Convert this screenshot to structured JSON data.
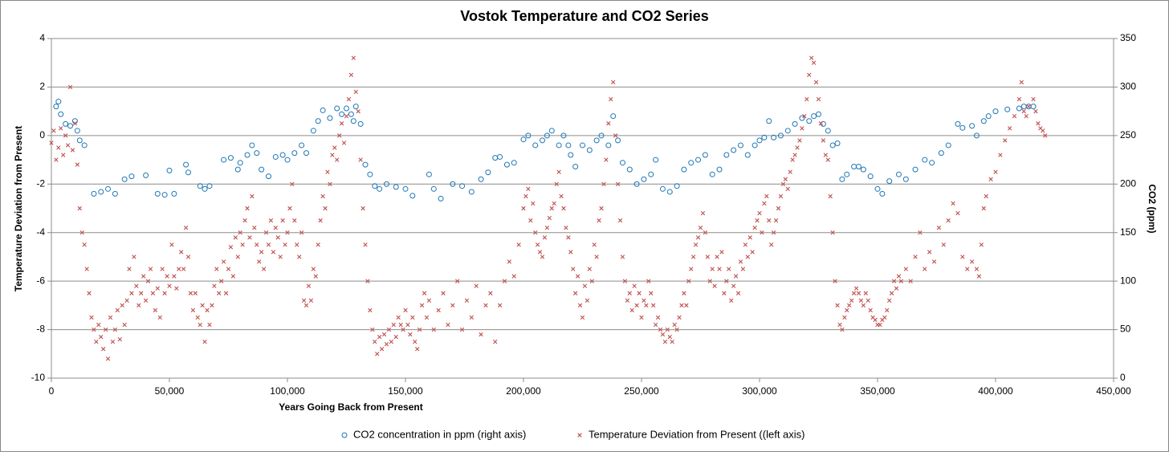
{
  "chart_data": {
    "type": "scatter",
    "title": "Vostok Temperature and CO2 Series",
    "x_label": "Years Going Back from Present",
    "y_label": "Temperature Deviation from Present",
    "y2_label": "CO2 (ppm)",
    "xlim": [
      0,
      450000
    ],
    "xticks": [
      0,
      {
        "value": 50000,
        "label": "50,000"
      },
      {
        "value": 100000,
        "label": "100,000"
      },
      {
        "value": 150000,
        "label": "150,000"
      },
      {
        "value": 200000,
        "label": "200,000"
      },
      {
        "value": 250000,
        "label": "250,000"
      },
      {
        "value": 300000,
        "label": "300,000"
      },
      {
        "value": 350000,
        "label": "350,000"
      },
      {
        "value": 400000,
        "label": "400,000"
      },
      {
        "value": 450000,
        "label": "450,000"
      }
    ],
    "ylim": [
      -10,
      4
    ],
    "yticks": [
      -10,
      -8,
      -6,
      -4,
      -2,
      0,
      2,
      4
    ],
    "y2lim": [
      0,
      350
    ],
    "y2ticks": [
      0,
      50,
      100,
      150,
      200,
      250,
      300,
      350
    ],
    "grid": true,
    "legend": "bottom",
    "series": [
      {
        "name": "CO2 concentration in ppm (right axis)",
        "color": "#1f77b4",
        "marker": "circle",
        "axis": "y2",
        "x": [
          2000,
          3000,
          4000,
          6000,
          8000,
          10000,
          11000,
          12000,
          14000,
          18000,
          21000,
          24000,
          27000,
          31000,
          34000,
          40000,
          45000,
          48000,
          50000,
          52000,
          57000,
          58000,
          63000,
          65000,
          67000,
          73000,
          76000,
          79000,
          80000,
          83000,
          85000,
          87000,
          89000,
          92000,
          95000,
          98000,
          100000,
          103000,
          106000,
          108000,
          111000,
          113000,
          115000,
          118000,
          121000,
          123000,
          125000,
          127000,
          128000,
          129000,
          131000,
          133000,
          135000,
          137000,
          139000,
          142000,
          146000,
          150000,
          153000,
          160000,
          162000,
          165000,
          170000,
          174000,
          178000,
          182000,
          185000,
          188000,
          190000,
          193000,
          196000,
          200000,
          202000,
          205000,
          208000,
          210000,
          212000,
          215000,
          217000,
          219000,
          220000,
          222000,
          225000,
          228000,
          231000,
          233000,
          236000,
          238000,
          240000,
          242000,
          245000,
          248000,
          251000,
          254000,
          256000,
          259000,
          262000,
          265000,
          268000,
          271000,
          274000,
          277000,
          280000,
          283000,
          286000,
          289000,
          292000,
          295000,
          298000,
          300000,
          302000,
          304000,
          306000,
          309000,
          312000,
          315000,
          318000,
          321000,
          323000,
          325000,
          327000,
          329000,
          331000,
          333000,
          335000,
          337000,
          340000,
          342000,
          344000,
          347000,
          350000,
          352000,
          355000,
          359000,
          362000,
          366000,
          370000,
          373000,
          377000,
          380000,
          384000,
          386000,
          390000,
          392000,
          395000,
          397000,
          400000,
          405000,
          410000,
          412000,
          414000,
          416000
        ],
        "values": [
          280,
          285,
          272,
          262,
          260,
          265,
          255,
          245,
          240,
          190,
          192,
          195,
          190,
          205,
          208,
          209,
          190,
          189,
          214,
          190,
          220,
          212,
          198,
          195,
          198,
          225,
          227,
          215,
          222,
          230,
          240,
          232,
          215,
          208,
          228,
          230,
          225,
          232,
          240,
          232,
          255,
          265,
          276,
          268,
          278,
          272,
          278,
          272,
          265,
          280,
          262,
          220,
          210,
          198,
          195,
          200,
          197,
          195,
          188,
          210,
          195,
          185,
          200,
          198,
          192,
          205,
          212,
          227,
          228,
          220,
          222,
          246,
          250,
          240,
          245,
          250,
          255,
          240,
          250,
          240,
          230,
          218,
          240,
          235,
          245,
          250,
          240,
          270,
          245,
          222,
          215,
          200,
          205,
          210,
          225,
          195,
          192,
          198,
          215,
          222,
          225,
          230,
          210,
          215,
          230,
          235,
          240,
          230,
          240,
          245,
          248,
          265,
          248,
          250,
          255,
          262,
          268,
          265,
          270,
          272,
          262,
          255,
          240,
          242,
          205,
          210,
          218,
          218,
          215,
          208,
          195,
          190,
          203,
          210,
          205,
          215,
          225,
          222,
          232,
          240,
          262,
          258,
          260,
          250,
          265,
          270,
          275,
          277,
          278,
          280,
          280,
          280
        ]
      },
      {
        "name": "Temperature Deviation from Present ((left axis)",
        "color": "#c0504d",
        "marker": "x",
        "axis": "y",
        "x": [
          0,
          1000,
          2000,
          3000,
          4000,
          5000,
          6000,
          7000,
          8000,
          9000,
          10000,
          11000,
          12000,
          13000,
          14000,
          15000,
          16000,
          17000,
          18000,
          19000,
          20000,
          21000,
          22000,
          23000,
          24000,
          25000,
          26000,
          27000,
          28000,
          29000,
          30000,
          31000,
          32000,
          33000,
          34000,
          35000,
          36000,
          37000,
          38000,
          39000,
          40000,
          41000,
          42000,
          43000,
          44000,
          45000,
          46000,
          47000,
          48000,
          49000,
          50000,
          51000,
          52000,
          53000,
          54000,
          55000,
          56000,
          57000,
          58000,
          59000,
          60000,
          61000,
          62000,
          63000,
          64000,
          65000,
          66000,
          67000,
          68000,
          69000,
          70000,
          71000,
          72000,
          73000,
          74000,
          75000,
          76000,
          77000,
          78000,
          79000,
          80000,
          81000,
          82000,
          83000,
          84000,
          85000,
          86000,
          87000,
          88000,
          89000,
          90000,
          91000,
          92000,
          93000,
          94000,
          95000,
          96000,
          97000,
          98000,
          99000,
          100000,
          101000,
          102000,
          103000,
          104000,
          105000,
          106000,
          107000,
          108000,
          109000,
          110000,
          111000,
          112000,
          113000,
          114000,
          115000,
          116000,
          117000,
          118000,
          119000,
          120000,
          121000,
          122000,
          123000,
          124000,
          125000,
          126000,
          127000,
          128000,
          129000,
          130000,
          131000,
          132000,
          133000,
          134000,
          135000,
          136000,
          137000,
          138000,
          139000,
          140000,
          141000,
          142000,
          143000,
          144000,
          145000,
          146000,
          147000,
          148000,
          149000,
          150000,
          151000,
          152000,
          153000,
          154000,
          155000,
          156000,
          157000,
          158000,
          159000,
          160000,
          162000,
          164000,
          166000,
          168000,
          170000,
          172000,
          174000,
          176000,
          178000,
          180000,
          182000,
          184000,
          186000,
          188000,
          190000,
          192000,
          194000,
          196000,
          198000,
          200000,
          201000,
          202000,
          203000,
          204000,
          205000,
          206000,
          207000,
          208000,
          209000,
          210000,
          211000,
          212000,
          213000,
          214000,
          215000,
          216000,
          217000,
          218000,
          219000,
          220000,
          221000,
          222000,
          223000,
          224000,
          225000,
          226000,
          227000,
          228000,
          229000,
          230000,
          231000,
          232000,
          233000,
          234000,
          235000,
          236000,
          237000,
          238000,
          239000,
          240000,
          241000,
          242000,
          243000,
          244000,
          245000,
          246000,
          247000,
          248000,
          249000,
          250000,
          251000,
          252000,
          253000,
          254000,
          255000,
          256000,
          257000,
          258000,
          259000,
          260000,
          261000,
          262000,
          263000,
          264000,
          265000,
          266000,
          267000,
          268000,
          269000,
          270000,
          271000,
          272000,
          273000,
          274000,
          275000,
          276000,
          277000,
          278000,
          279000,
          280000,
          281000,
          282000,
          283000,
          284000,
          285000,
          286000,
          287000,
          288000,
          289000,
          290000,
          291000,
          292000,
          293000,
          294000,
          295000,
          296000,
          297000,
          298000,
          299000,
          300000,
          301000,
          302000,
          303000,
          304000,
          305000,
          306000,
          307000,
          308000,
          309000,
          310000,
          311000,
          312000,
          313000,
          314000,
          315000,
          316000,
          317000,
          318000,
          319000,
          320000,
          321000,
          322000,
          323000,
          324000,
          325000,
          326000,
          327000,
          328000,
          329000,
          330000,
          331000,
          332000,
          333000,
          334000,
          335000,
          336000,
          337000,
          338000,
          339000,
          340000,
          341000,
          342000,
          343000,
          344000,
          345000,
          346000,
          347000,
          348000,
          349000,
          350000,
          351000,
          352000,
          353000,
          354000,
          355000,
          356000,
          357000,
          358000,
          359000,
          360000,
          362000,
          364000,
          366000,
          368000,
          370000,
          372000,
          374000,
          376000,
          378000,
          380000,
          382000,
          384000,
          386000,
          388000,
          390000,
          392000,
          393000,
          394000,
          395000,
          396000,
          398000,
          400000,
          402000,
          404000,
          406000,
          408000,
          410000,
          411000,
          412000,
          413000,
          414000,
          416000,
          417000,
          418000,
          419000,
          420000,
          421000
        ],
        "values": [
          -0.3,
          0.2,
          -1,
          -0.5,
          0.3,
          -0.8,
          0,
          -0.4,
          2,
          -0.6,
          0.5,
          -1.2,
          -3,
          -4,
          -4.5,
          -5.5,
          -6.5,
          -7.5,
          -8,
          -8.5,
          -7.8,
          -8.3,
          -8.8,
          -8,
          -9.2,
          -7.5,
          -8.5,
          -8,
          -7.2,
          -8.4,
          -7,
          -7.8,
          -6.8,
          -5.5,
          -6.5,
          -5,
          -6.2,
          -7,
          -6.5,
          -5.8,
          -6.8,
          -6,
          -5.5,
          -6.5,
          -7.2,
          -6.3,
          -7.5,
          -5.5,
          -6.5,
          -5.8,
          -6.2,
          -4.5,
          -5.8,
          -6.3,
          -5.5,
          -4.8,
          -5.5,
          -3.8,
          -5,
          -6.5,
          -7.2,
          -6.5,
          -7.5,
          -7.8,
          -7,
          -8.5,
          -7.2,
          -7.8,
          -7,
          -6.2,
          -5.5,
          -6.5,
          -6,
          -5.2,
          -6.5,
          -5.5,
          -4.6,
          -5.8,
          -4.2,
          -5,
          -4,
          -4.5,
          -3.5,
          -3,
          -4.2,
          -2.5,
          -3.8,
          -4.5,
          -5.2,
          -4.8,
          -5.5,
          -4,
          -4.5,
          -3.5,
          -4.8,
          -3.8,
          -4.2,
          -5,
          -3.5,
          -4.5,
          -4,
          -3,
          -2,
          -3.5,
          -4.5,
          -5,
          -4,
          -6.8,
          -7,
          -6.2,
          -6.8,
          -5.5,
          -5.8,
          -4.5,
          -3.5,
          -2.5,
          -3,
          -1.5,
          -2,
          -0.8,
          -0.5,
          -1,
          0,
          0.5,
          -0.3,
          0.8,
          1.5,
          2.5,
          3.2,
          1.8,
          1,
          -1,
          -3,
          -4.5,
          -6,
          -7.2,
          -8,
          -8.5,
          -9,
          -8.3,
          -8.8,
          -8.2,
          -8.6,
          -8,
          -8.5,
          -7.8,
          -8.3,
          -7.5,
          -7.8,
          -8,
          -7.2,
          -7.8,
          -8.2,
          -7.5,
          -8.5,
          -8.8,
          -8,
          -7,
          -6.5,
          -7.5,
          -6.8,
          -8,
          -7.2,
          -6.5,
          -7.8,
          -7,
          -6,
          -8,
          -6.8,
          -7.5,
          -6.2,
          -8.2,
          -7,
          -6.5,
          -8.5,
          -7,
          -6,
          -5.2,
          -5.8,
          -4.5,
          -3,
          -2.5,
          -2.2,
          -3.5,
          -2.8,
          -4,
          -4.5,
          -4.8,
          -5,
          -4.2,
          -3.8,
          -3.4,
          -3,
          -2.8,
          -2,
          -1.5,
          -2.5,
          -3,
          -3.8,
          -4.2,
          -4.8,
          -5.5,
          -6.5,
          -5.8,
          -7,
          -7.5,
          -6.2,
          -6.8,
          -5.5,
          -6,
          -4.5,
          -5,
          -3.5,
          -3,
          -2,
          -1,
          0.5,
          1.5,
          2.2,
          0,
          -2,
          -3.5,
          -5,
          -6,
          -6.8,
          -6.5,
          -7.2,
          -6.2,
          -7,
          -6.5,
          -7.5,
          -6.8,
          -7,
          -6,
          -6.5,
          -7,
          -7.8,
          -7.5,
          -8,
          -8.2,
          -8.5,
          -8,
          -8.3,
          -8.5,
          -7.8,
          -8,
          -7.5,
          -7,
          -6.5,
          -7,
          -6,
          -5.5,
          -5,
          -4.5,
          -4.2,
          -3.8,
          -3.2,
          -4,
          -5,
          -6,
          -5.5,
          -6.2,
          -5,
          -5.5,
          -4.8,
          -6.5,
          -6,
          -5.5,
          -6.8,
          -6.2,
          -5.8,
          -6.5,
          -5.2,
          -5.5,
          -4.5,
          -5,
          -4.2,
          -4.8,
          -3.8,
          -3.5,
          -3.2,
          -4,
          -2.8,
          -2.5,
          -3.5,
          -4.5,
          -4,
          -3.5,
          -3,
          -2.5,
          -2,
          -1.8,
          -2.2,
          -1.5,
          -1,
          -0.8,
          -0.5,
          -0.2,
          0.3,
          0.8,
          1.5,
          2.5,
          3.2,
          3,
          2.2,
          1.5,
          0.5,
          -0.2,
          -0.8,
          -1,
          -2.5,
          -4,
          -6,
          -7,
          -7.8,
          -8,
          -7.5,
          -7.2,
          -7,
          -6.8,
          -6.5,
          -6.3,
          -6.5,
          -6.8,
          -7,
          -6.5,
          -6.8,
          -7.2,
          -7.5,
          -7.6,
          -7.8,
          -7.8,
          -7.6,
          -7.5,
          -7.2,
          -6.8,
          -6.5,
          -6,
          -6.3,
          -5.8,
          -6,
          -5.5,
          -6,
          -5,
          -4,
          -5.5,
          -4.8,
          -5.2,
          -3.8,
          -4.5,
          -3.5,
          -2.8,
          -3.2,
          -5,
          -5.5,
          -5.2,
          -5.5,
          -5.8,
          -4.5,
          -3,
          -2.5,
          -1.8,
          -1.5,
          -0.8,
          -0.2,
          0.3,
          0.8,
          1.5,
          2.2,
          1,
          0.8,
          1.2,
          1.5,
          1,
          0.5,
          0.3,
          0.2,
          0
        ]
      }
    ]
  }
}
